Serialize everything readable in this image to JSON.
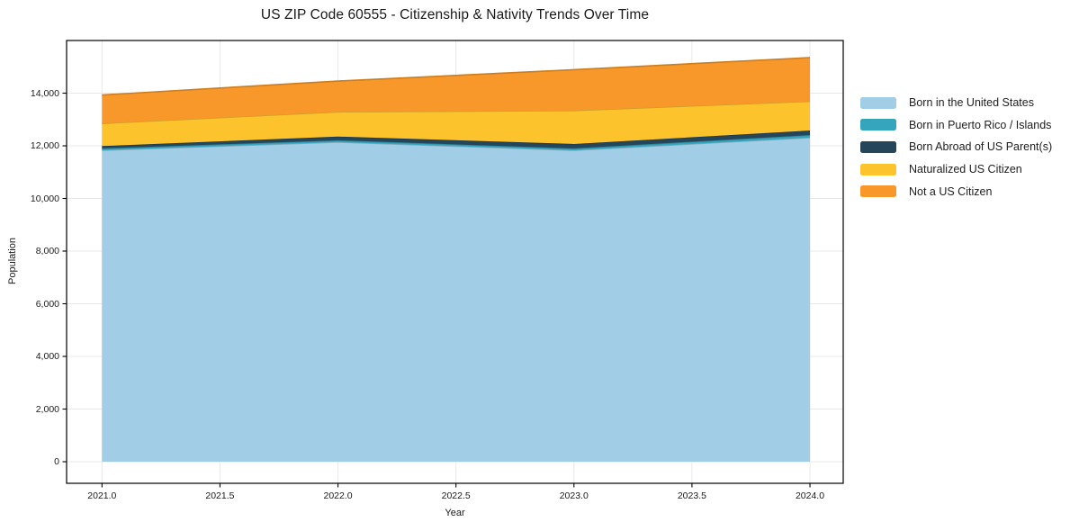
{
  "title": "US ZIP Code 60555 - Citizenship & Nativity Trends Over Time",
  "chart_data": {
    "type": "area",
    "stacked": true,
    "title": "US ZIP Code 60555 - Citizenship & Nativity Trends Over Time",
    "xlabel": "Year",
    "ylabel": "Population",
    "x": [
      2021,
      2022,
      2023,
      2024
    ],
    "series": [
      {
        "name": "Born in the United States",
        "color": "#a1cee6",
        "values": [
          11830,
          12140,
          11830,
          12310
        ]
      },
      {
        "name": "Born in Puerto Rico / Islands",
        "color": "#35a5bd",
        "values": [
          70,
          70,
          70,
          100
        ]
      },
      {
        "name": "Born Abroad of US Parent(s)",
        "color": "#25465a",
        "values": [
          90,
          140,
          170,
          170
        ]
      },
      {
        "name": "Naturalized US Citizen",
        "color": "#fcc32d",
        "values": [
          860,
          940,
          1270,
          1110
        ]
      },
      {
        "name": "Not a US Citizen",
        "color": "#f8982a",
        "values": [
          1080,
          1170,
          1550,
          1660
        ]
      }
    ],
    "stacked_totals": [
      13930,
      14460,
      14890,
      15350
    ],
    "xlim": [
      2020.85,
      2024.141
    ],
    "ylim": [
      -820,
      16000
    ],
    "xticks": [
      {
        "v": 2021.0,
        "label": "2021.0"
      },
      {
        "v": 2021.5,
        "label": "2021.5"
      },
      {
        "v": 2022.0,
        "label": "2022.0"
      },
      {
        "v": 2022.5,
        "label": "2022.5"
      },
      {
        "v": 2023.0,
        "label": "2023.0"
      },
      {
        "v": 2023.5,
        "label": "2023.5"
      },
      {
        "v": 2024.0,
        "label": "2024.0"
      }
    ],
    "yticks": [
      {
        "v": 0,
        "label": "0"
      },
      {
        "v": 2000,
        "label": "2,000"
      },
      {
        "v": 4000,
        "label": "4,000"
      },
      {
        "v": 6000,
        "label": "6,000"
      },
      {
        "v": 8000,
        "label": "8,000"
      },
      {
        "v": 10000,
        "label": "10,000"
      },
      {
        "v": 12000,
        "label": "12,000"
      },
      {
        "v": 14000,
        "label": "14,000"
      }
    ],
    "grid": true,
    "grid_color": "#e8e8e8",
    "spine_color": "#000000",
    "legend_position": "right"
  }
}
